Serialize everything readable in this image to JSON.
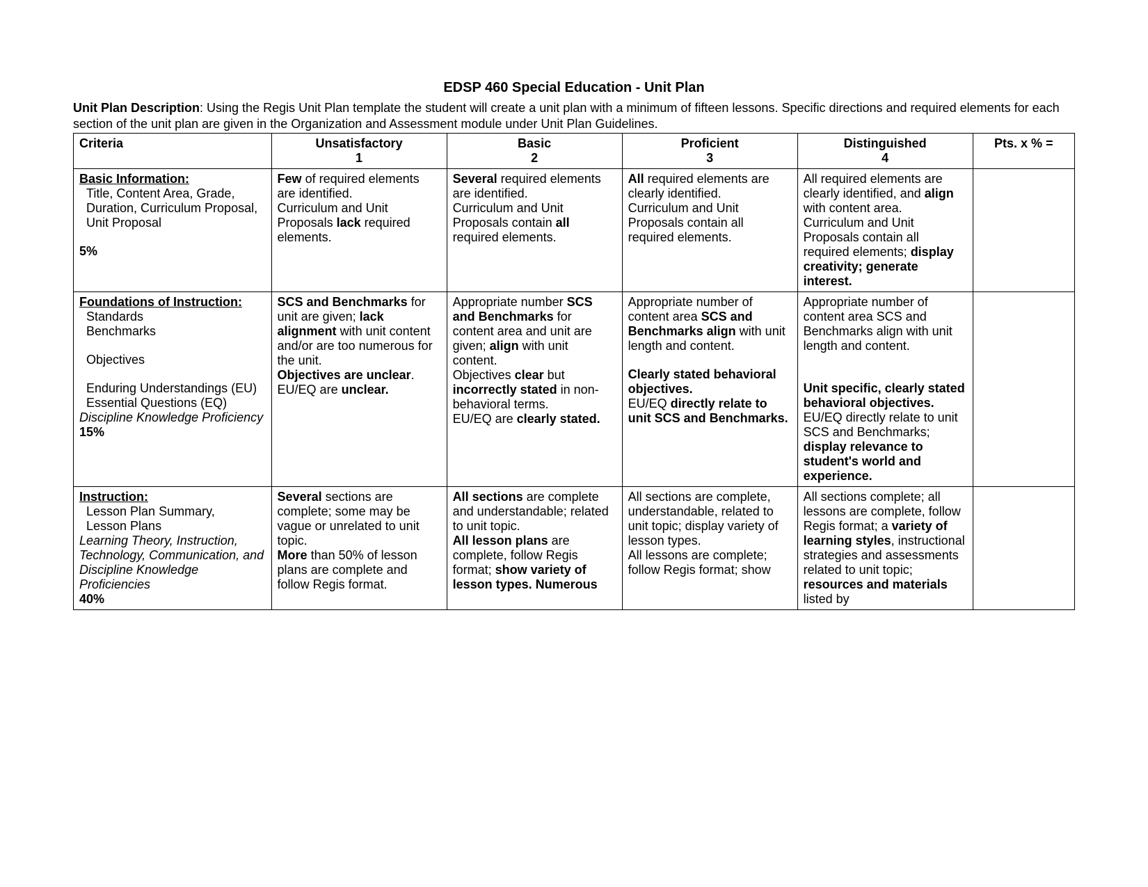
{
  "doc": {
    "title": "EDSP 460 Special Education - Unit Plan",
    "description_label": "Unit Plan Description",
    "description_text": ": Using the Regis Unit Plan template the student will create a unit plan with a minimum of fifteen lessons.  Specific directions and required elements for each section of the unit plan are given in the Organization and Assessment module under Unit Plan Guidelines."
  },
  "headers": {
    "criteria": "Criteria",
    "l1_name": "Unsatisfactory",
    "l1_num": "1",
    "l2_name": "Basic",
    "l2_num": "2",
    "l3_name": "Proficient",
    "l3_num": "3",
    "l4_name": "Distinguished",
    "l4_num": "4",
    "pts": "Pts. x % ="
  },
  "rows": {
    "r1": {
      "crit_head": "Basic Information:",
      "crit_body": "Title, Content Area, Grade, Duration, Curriculum Proposal, Unit Proposal",
      "pct": "5%",
      "l1_a": "Few",
      "l1_b": " of required elements are identified.",
      "l1_c": "Curriculum and Unit Proposals ",
      "l1_d": "lack",
      "l1_e": " required elements.",
      "l2_a": "Several",
      "l2_b": " required elements are identified.",
      "l2_c": "Curriculum and Unit Proposals contain ",
      "l2_d": "all",
      "l2_e": " required elements.",
      "l3_a": "All",
      "l3_b": " required elements are clearly identified.",
      "l3_c": "Curriculum and Unit Proposals contain all required elements.",
      "l4_a": "All required elements are clearly identified, and ",
      "l4_b": "align",
      "l4_c": " with content area.",
      "l4_d": "Curriculum and Unit Proposals contain all required elements; ",
      "l4_e": "display creativity; generate interest."
    },
    "r2": {
      "crit_head": "Foundations of Instruction:",
      "crit_item1": "Standards",
      "crit_item2": "Benchmarks",
      "crit_item3": "Objectives",
      "crit_item4a": "Enduring Understandings (EU)",
      "crit_item4b": "Essential Questions (EQ)",
      "crit_italic": "Discipline Knowledge Proficiency",
      "pct": "15%",
      "l1_a": "SCS and Benchmarks",
      "l1_b": " for unit are given; ",
      "l1_c": "lack alignment",
      "l1_d": " with unit content and/or are too numerous for the unit.",
      "l1_e": "Objectives are unclear",
      "l1_f": ".",
      "l1_g": "EU/EQ are ",
      "l1_h": "unclear.",
      "l2_a": "Appropriate number ",
      "l2_b": "SCS and Benchmarks",
      "l2_c": " for content area and unit are given; ",
      "l2_d": "align",
      "l2_e": " with unit content.",
      "l2_f": "Objectives ",
      "l2_g": "clear",
      "l2_h": " but ",
      "l2_i": "incorrectly stated",
      "l2_j": " in non-behavioral terms.",
      "l2_k": "EU/EQ are ",
      "l2_l": "clearly stated.",
      "l3_a": "Appropriate number of content area ",
      "l3_b": "SCS and Benchmarks",
      "l3_c": " ",
      "l3_d": "align",
      "l3_e": " with unit length and content.",
      "l3_f": "Clearly stated behavioral objectives.",
      "l3_g": "EU/EQ ",
      "l3_h": "directly relate to unit SCS and Benchmarks.",
      "l4_a": "Appropriate number of content area SCS and Benchmarks align with unit length and content.",
      "l4_b": "Unit specific, clearly stated behavioral objectives.",
      "l4_c": "EU/EQ directly relate to unit SCS and Benchmarks; ",
      "l4_d": "display relevance to student's world and experience."
    },
    "r3": {
      "crit_head": "Instruction:",
      "crit_item1": "Lesson Plan Summary,",
      "crit_item2": "Lesson Plans",
      "crit_italic": "Learning Theory, Instruction, Technology, Communication, and Discipline Knowledge Proficiencies",
      "pct": "40%",
      "l1_a": "Several",
      "l1_b": " sections are complete; some may be vague or unrelated to unit topic.",
      "l1_c": "More",
      "l1_d": " than 50% of lesson plans are complete and follow Regis format.",
      "l2_a": "All sections",
      "l2_b": " are complete and understandable; related to unit topic.",
      "l2_c": "All lesson plans",
      "l2_d": " are complete, follow Regis format; ",
      "l2_e": "show variety of lesson types. Numerous",
      "l3_a": "All sections are complete, understandable, related to unit topic; display variety of lesson types.",
      "l3_b": "All lessons are complete; follow Regis format; show",
      "l4_a": "All sections complete; all lessons are complete, follow Regis format; a ",
      "l4_b": "variety of learning styles",
      "l4_c": ", instructional strategies and assessments related to unit topic; ",
      "l4_d": "resources and materials",
      "l4_e": " listed by"
    }
  }
}
